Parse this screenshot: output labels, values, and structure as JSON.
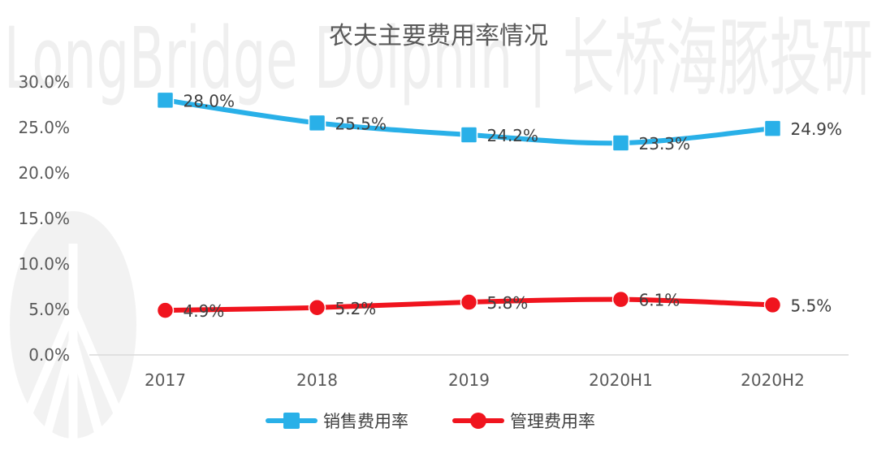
{
  "watermark": {
    "text": "LongBridge Dolphin | 长桥海豚投研"
  },
  "chart_data": {
    "type": "line",
    "title": "农夫主要费用率情况",
    "categories": [
      "2017",
      "2018",
      "2019",
      "2020H1",
      "2020H2"
    ],
    "series": [
      {
        "name": "销售费用率",
        "color": "#29B0E8",
        "values": [
          28.0,
          25.5,
          24.2,
          23.3,
          24.9
        ],
        "labels": [
          "28.0%",
          "25.5%",
          "24.2%",
          "23.3%",
          "24.9%"
        ]
      },
      {
        "name": "管理费用率",
        "color": "#F0141E",
        "values": [
          4.9,
          5.2,
          5.8,
          6.1,
          5.5
        ],
        "labels": [
          "4.9%",
          "5.2%",
          "5.8%",
          "6.1%",
          "5.5%"
        ]
      }
    ],
    "y_ticks": [
      "30.0%",
      "25.0%",
      "20.0%",
      "15.0%",
      "10.0%",
      "5.0%",
      "0.0%"
    ],
    "ylim": [
      0,
      30
    ],
    "grid": false,
    "legend_position": "bottom",
    "xlabel": "",
    "ylabel": ""
  }
}
